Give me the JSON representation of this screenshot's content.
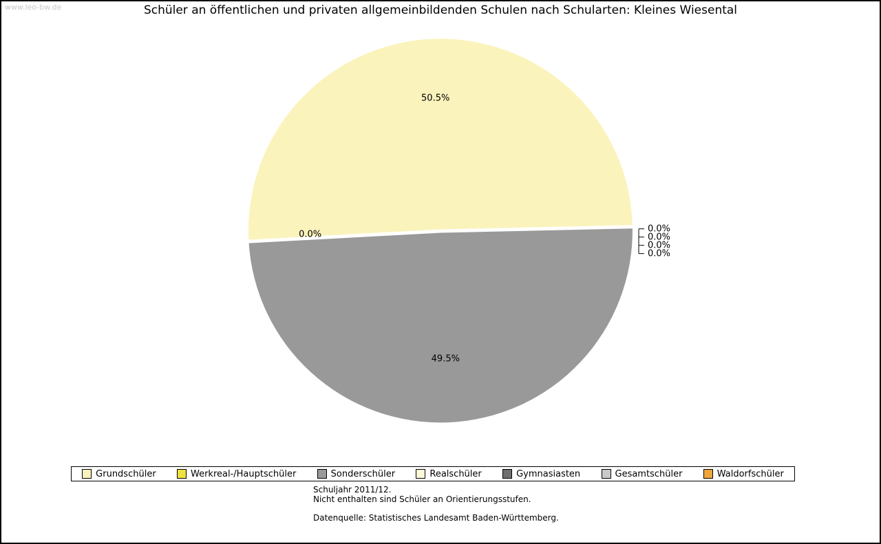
{
  "page": {
    "watermark": "www.leo-bw.de",
    "title": "Schüler an öffentlichen und privaten allgemeinbildenden Schulen nach Schularten: Kleines Wiesental",
    "footnotes": [
      "Schuljahr 2011/12.",
      "Nicht enthalten sind Schüler an Orientierungsstufen."
    ],
    "source": "Datenquelle: Statistisches Landesamt Baden-Württemberg."
  },
  "chart_data": {
    "type": "pie",
    "title": "Schüler an öffentlichen und privaten allgemeinbildenden Schulen nach Schularten: Kleines Wiesental",
    "unit": "%",
    "legend_position": "bottom",
    "series": [
      {
        "name": "Grundschüler",
        "value": 50.5,
        "color": "#FBF3BC"
      },
      {
        "name": "Werkreal-/Hauptschüler",
        "value": 0.0,
        "color": "#F0E142"
      },
      {
        "name": "Sonderschüler",
        "value": 49.5,
        "color": "#999999"
      },
      {
        "name": "Realschüler",
        "value": 0.0,
        "color": "#FCF8D8"
      },
      {
        "name": "Gymnasiasten",
        "value": 0.0,
        "color": "#6E6E6E"
      },
      {
        "name": "Gesamtschüler",
        "value": 0.0,
        "color": "#C9C9C9"
      },
      {
        "name": "Waldorfschüler",
        "value": 0.0,
        "color": "#EDA63B"
      }
    ]
  }
}
